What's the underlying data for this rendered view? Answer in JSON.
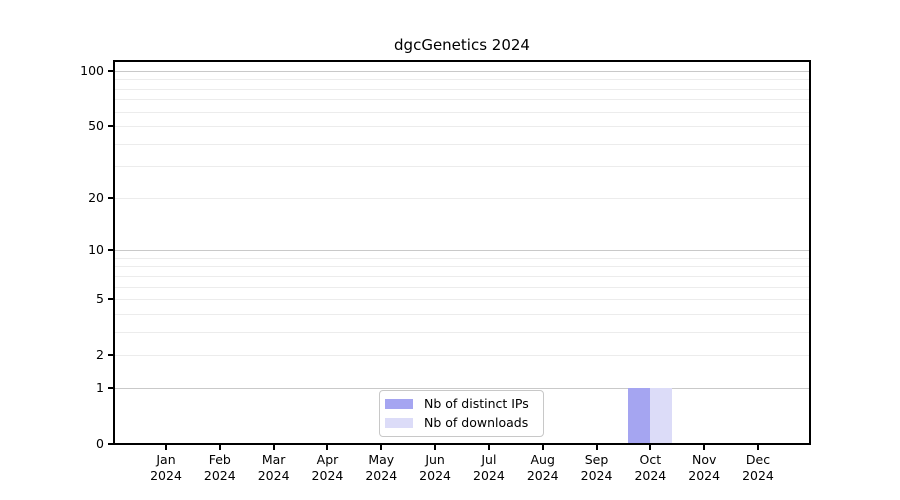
{
  "chart_data": {
    "type": "bar",
    "title": "dgcGenetics 2024",
    "categories": [
      "Jan",
      "Feb",
      "Mar",
      "Apr",
      "May",
      "Jun",
      "Jul",
      "Aug",
      "Sep",
      "Oct",
      "Nov",
      "Dec"
    ],
    "x_tick_second_line": "2024",
    "series": [
      {
        "name": "Nb of distinct IPs",
        "color": "#a5a5f1",
        "values": [
          0,
          0,
          0,
          0,
          0,
          0,
          0,
          0,
          0,
          1,
          0,
          0
        ]
      },
      {
        "name": "Nb of downloads",
        "color": "#dcdcf8",
        "values": [
          0,
          0,
          0,
          0,
          0,
          0,
          0,
          0,
          0,
          1,
          0,
          0
        ]
      }
    ],
    "y_scale": "log1p",
    "ylim": [
      0,
      100
    ],
    "y_ticks": [
      "0",
      "1",
      "2",
      "5",
      "10",
      "20",
      "50",
      "100"
    ],
    "y_gridlines_major": [
      1,
      10,
      100
    ],
    "y_gridlines_minor": [
      2,
      3,
      4,
      5,
      6,
      7,
      8,
      9,
      20,
      30,
      40,
      50,
      60,
      70,
      80,
      90
    ],
    "legend_position": "bottom-center",
    "grid_on": true,
    "colors": {
      "axis": "#000000",
      "grid_major": "#c9c9c9",
      "grid_minor": "#ececec",
      "background": "#ffffff",
      "text": "#000000"
    }
  }
}
